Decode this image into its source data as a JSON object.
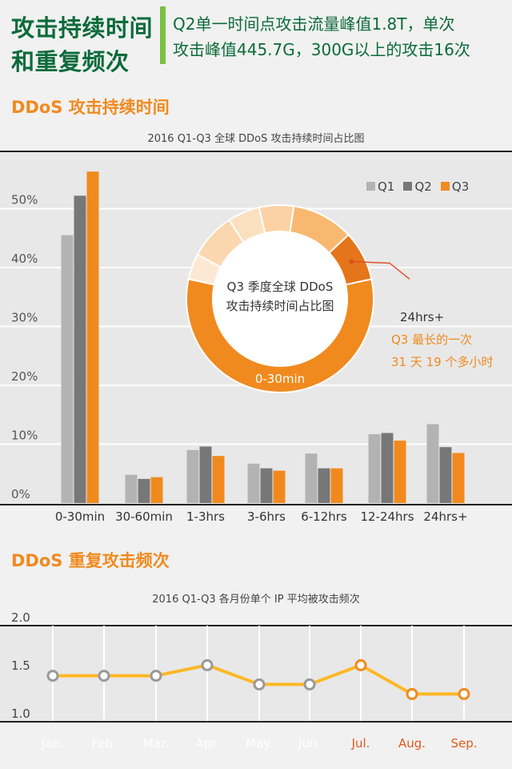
{
  "header": {
    "title": "攻击持续时间和重复频次",
    "summary_line1": "Q2单一时间点攻击流量峰值1.8T，单次",
    "summary_line2": "攻击峰值445.7G，300G以上的攻击16次"
  },
  "section1": {
    "title": "DDoS 攻击持续时间"
  },
  "section2": {
    "title": "DDoS 重复攻击频次"
  },
  "colors": {
    "q1": "#b3b3b3",
    "q2": "#777777",
    "q3": "#f08a1f",
    "green": "#0c6b3a",
    "accent": "#7ac143"
  },
  "chart_data": [
    {
      "type": "bar",
      "title": "2016 Q1-Q3 全球 DDoS 攻击持续时间占比图",
      "categories": [
        "0-30min",
        "30-60min",
        "1-3hrs",
        "3-6hrs",
        "6-12hrs",
        "12-24hrs",
        "24hrs+"
      ],
      "series": [
        {
          "name": "Q1",
          "values": [
            45.5,
            4.8,
            9.0,
            6.7,
            8.4,
            11.7,
            13.4
          ]
        },
        {
          "name": "Q2",
          "values": [
            52.2,
            4.1,
            9.6,
            5.9,
            5.9,
            11.9,
            9.5
          ]
        },
        {
          "name": "Q3",
          "values": [
            56.3,
            4.4,
            8.0,
            5.5,
            5.9,
            10.6,
            8.5
          ]
        }
      ],
      "yticks": [
        "0%",
        "10%",
        "20%",
        "30%",
        "40%",
        "50%"
      ],
      "ylim": [
        0,
        60
      ],
      "legend": "top-right"
    },
    {
      "type": "pie",
      "title_line1": "Q3 季度全球 DDoS",
      "title_line2": "攻击持续时间占比图",
      "labels": [
        "0-30min",
        "30-60min",
        "1-3hrs",
        "3-6hrs",
        "6-12hrs",
        "12-24hrs",
        "24hrs+"
      ],
      "values": [
        56.3,
        4.4,
        8.0,
        5.5,
        5.9,
        10.6,
        8.5
      ],
      "slice_colors": [
        "#f08a1f",
        "#fde9d3",
        "#fad7ae",
        "#fbe0c0",
        "#fcd2a4",
        "#f8b870",
        "#e5751a"
      ],
      "label_main": "0-30min",
      "callout_label": "24hrs+",
      "callout_note1": "Q3 最长的一次",
      "callout_note2": "31 天 19 个多小时"
    },
    {
      "type": "line",
      "title": "2016 Q1-Q3 各月份单个 IP 平均被攻击频次",
      "x": [
        "Jan.",
        "Feb.",
        "Mar.",
        "Apr.",
        "May.",
        "Jun.",
        "Jul.",
        "Aug.",
        "Sep."
      ],
      "values": [
        1.47,
        1.47,
        1.47,
        1.58,
        1.38,
        1.38,
        1.58,
        1.28,
        1.28
      ],
      "highlight": [
        false,
        false,
        false,
        false,
        false,
        false,
        true,
        true,
        true
      ],
      "yticks": [
        "1.0",
        "1.5",
        "2.0"
      ],
      "ylim": [
        1.0,
        2.0
      ]
    }
  ]
}
